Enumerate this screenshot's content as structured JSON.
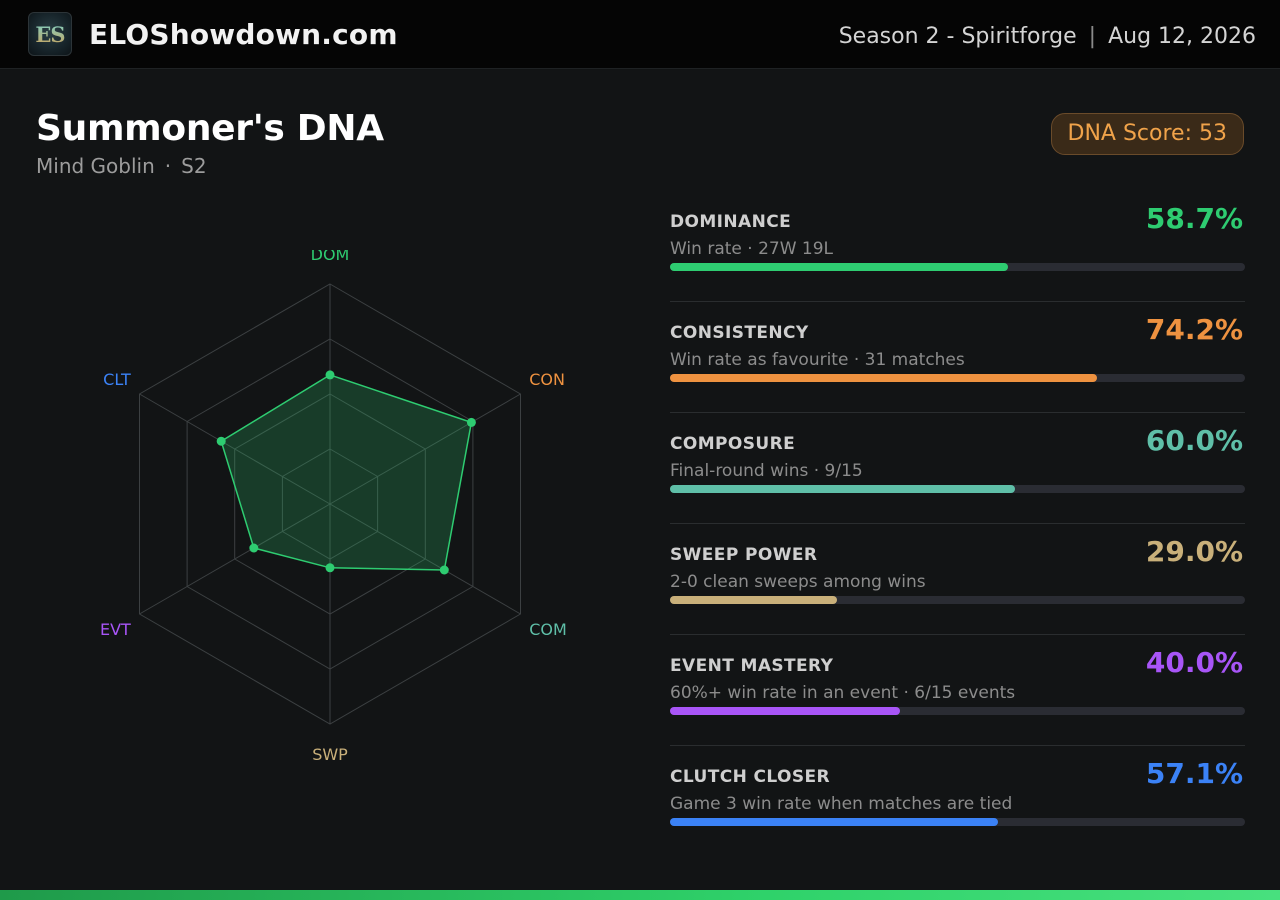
{
  "header": {
    "logo_text": "ES",
    "site_name": "ELOShowdown.com",
    "season": "Season 2 - Spiritforge",
    "separator": "|",
    "date": "Aug 12, 2026"
  },
  "page": {
    "title": "Summoner's DNA",
    "player": "Mind Goblin",
    "dot": "·",
    "season_short": "S2",
    "dna_score_label": "DNA Score: 53"
  },
  "chart_data": {
    "type": "radar",
    "axes": [
      "DOM",
      "CON",
      "COM",
      "SWP",
      "EVT",
      "CLT"
    ],
    "values": [
      58.7,
      74.2,
      60.0,
      29.0,
      40.0,
      57.1
    ],
    "range": [
      0,
      100
    ],
    "rings": 4,
    "axis_colors": [
      "#2ecc71",
      "#ee9240",
      "#5fbfa8",
      "#c9b07a",
      "#a855f7",
      "#3b82f6"
    ],
    "series_color": "#2ecc71",
    "grid": true
  },
  "metrics": [
    {
      "name": "DOMINANCE",
      "desc": "Win rate · 27W 19L",
      "value_text": "58.7%",
      "value": 58.7,
      "color": "#2ecc71"
    },
    {
      "name": "CONSISTENCY",
      "desc": "Win rate as favourite · 31 matches",
      "value_text": "74.2%",
      "value": 74.2,
      "color": "#ee9240"
    },
    {
      "name": "COMPOSURE",
      "desc": "Final-round wins · 9/15",
      "value_text": "60.0%",
      "value": 60.0,
      "color": "#5fbfa8"
    },
    {
      "name": "SWEEP POWER",
      "desc": "2-0 clean sweeps among wins",
      "value_text": "29.0%",
      "value": 29.0,
      "color": "#c9b07a"
    },
    {
      "name": "EVENT MASTERY",
      "desc": "60%+ win rate in an event · 6/15 events",
      "value_text": "40.0%",
      "value": 40.0,
      "color": "#a855f7"
    },
    {
      "name": "CLUTCH CLOSER",
      "desc": "Game 3 win rate when matches are tied",
      "value_text": "57.1%",
      "value": 57.1,
      "color": "#3b82f6"
    }
  ]
}
